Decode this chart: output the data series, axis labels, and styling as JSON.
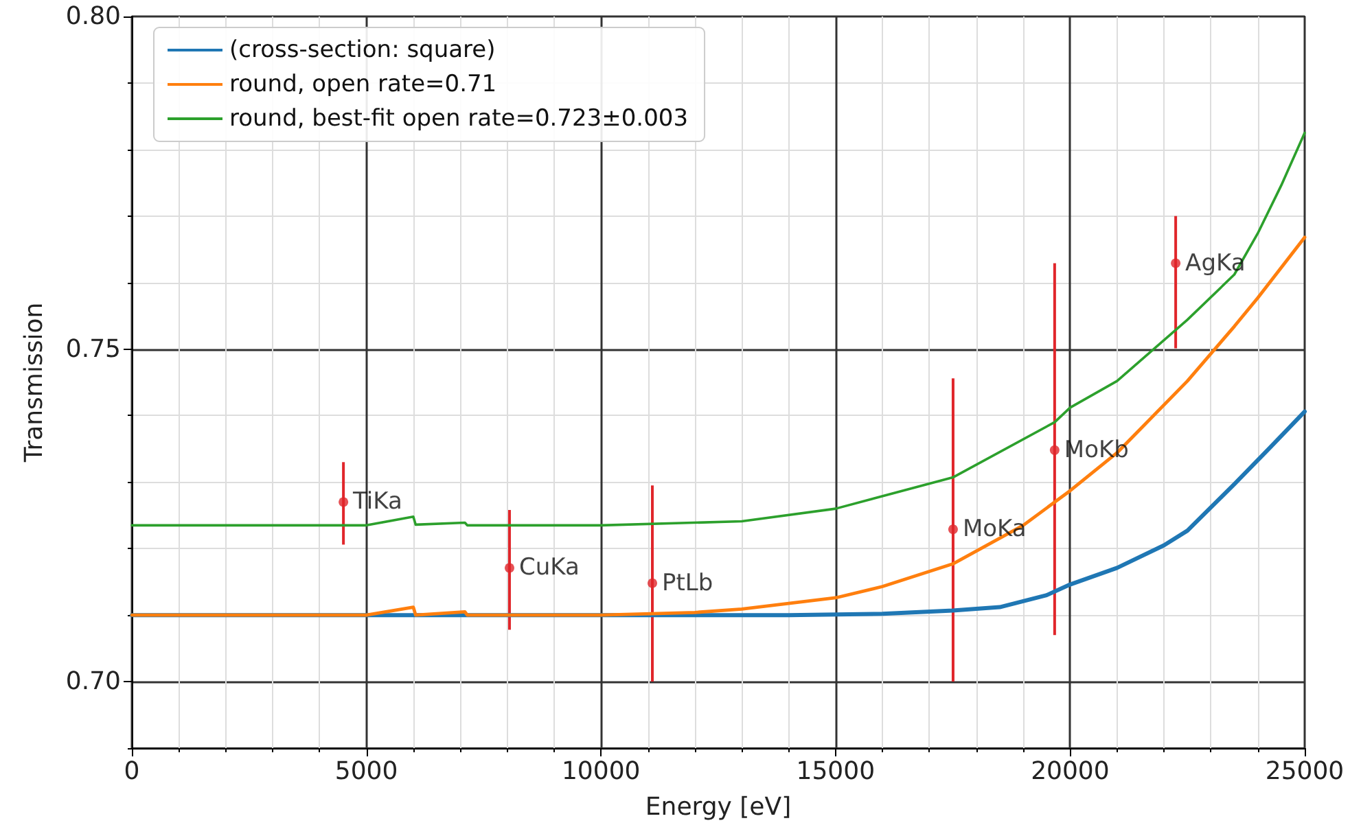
{
  "chart_data": {
    "type": "line",
    "xlabel": "Energy [eV]",
    "ylabel": "Transmission",
    "xlim": [
      0,
      25000
    ],
    "ylim": [
      0.69,
      0.8
    ],
    "xticks": [
      0,
      {
        "value": 1000,
        "label": null
      },
      {
        "value": 2000,
        "label": null
      },
      {
        "value": 3000,
        "label": null
      },
      {
        "value": 4000,
        "label": null
      },
      5000,
      {
        "value": 6000,
        "label": null
      },
      {
        "value": 7000,
        "label": null
      },
      {
        "value": 8000,
        "label": null
      },
      {
        "value": 9000,
        "label": null
      },
      10000,
      {
        "value": 11000,
        "label": null
      },
      {
        "value": 12000,
        "label": null
      },
      {
        "value": 13000,
        "label": null
      },
      {
        "value": 14000,
        "label": null
      },
      15000,
      {
        "value": 16000,
        "label": null
      },
      {
        "value": 17000,
        "label": null
      },
      {
        "value": 18000,
        "label": null
      },
      {
        "value": 19000,
        "label": null
      },
      20000,
      {
        "value": 21000,
        "label": null
      },
      {
        "value": 22000,
        "label": null
      },
      {
        "value": 23000,
        "label": null
      },
      {
        "value": 24000,
        "label": null
      },
      25000
    ],
    "yticks": [
      {
        "value": 0.69,
        "label": null
      },
      {
        "value": 0.7,
        "label": "0.70"
      },
      {
        "value": 0.71,
        "label": null
      },
      {
        "value": 0.72,
        "label": null
      },
      {
        "value": 0.73,
        "label": null
      },
      {
        "value": 0.74,
        "label": null
      },
      {
        "value": 0.75,
        "label": "0.75"
      },
      {
        "value": 0.76,
        "label": null
      },
      {
        "value": 0.77,
        "label": null
      },
      {
        "value": 0.78,
        "label": null
      },
      {
        "value": 0.79,
        "label": null
      },
      {
        "value": 0.8,
        "label": "0.80"
      }
    ],
    "grid": true,
    "legend": "top left",
    "marker": "none",
    "line_style": "solid",
    "series": [
      {
        "name": "(cross-section: square)",
        "color": "#1f77b4",
        "x": [
          0,
          14000,
          16000,
          17500,
          18500,
          19500,
          20000,
          21000,
          22000,
          22500,
          23500,
          24250,
          25000
        ],
        "values": [
          0.71,
          0.71,
          0.7102,
          0.7107,
          0.7112,
          0.713,
          0.7146,
          0.7171,
          0.7205,
          0.7227,
          0.7297,
          0.7351,
          0.7406
        ]
      },
      {
        "name": "round, open rate=0.71",
        "color": "#ff7f0e",
        "x": [
          0,
          5000,
          6000,
          6050,
          7100,
          7150,
          10000,
          12000,
          13000,
          15000,
          16000,
          17500,
          19000,
          20000,
          21000,
          22500,
          23500,
          24000,
          25000
        ],
        "values": [
          0.71,
          0.71,
          0.7112,
          0.71,
          0.7105,
          0.71,
          0.71,
          0.7104,
          0.7109,
          0.7126,
          0.7143,
          0.7177,
          0.7235,
          0.7287,
          0.7344,
          0.7452,
          0.7534,
          0.7577,
          0.7668
        ]
      },
      {
        "name": "round, best-fit open rate=0.723±0.003",
        "color": "#2ca02c",
        "x": [
          0,
          5000,
          6000,
          6050,
          7100,
          7150,
          10000,
          13000,
          15000,
          17500,
          19670,
          20000,
          21000,
          22500,
          23500,
          24000,
          24500,
          25000
        ],
        "values": [
          0.7235,
          0.7235,
          0.7248,
          0.7236,
          0.7239,
          0.7235,
          0.7235,
          0.7241,
          0.726,
          0.7307,
          0.739,
          0.7412,
          0.7452,
          0.7544,
          0.7612,
          0.7674,
          0.7746,
          0.7825
        ]
      },
      {
        "type": "scatter",
        "color": "#e0262b",
        "marker": "circle",
        "x": [
          4510,
          8050,
          11095,
          17505,
          19670,
          22250
        ],
        "values": [
          0.727,
          0.7171,
          0.7148,
          0.7229,
          0.7348,
          0.7629
        ],
        "errors": [
          [
            0.7206,
            0.733
          ],
          [
            0.7078,
            0.7258
          ],
          [
            0.7,
            0.7295
          ],
          [
            0.7,
            0.7456
          ],
          [
            0.707,
            0.7629
          ],
          [
            0.7501,
            0.77
          ]
        ]
      }
    ],
    "annotations": [
      {
        "text": "TiKa",
        "x": 4510,
        "y": 0.727
      },
      {
        "text": "CuKa",
        "x": 8050,
        "y": 0.7171
      },
      {
        "text": "PtLb",
        "x": 11095,
        "y": 0.7148
      },
      {
        "text": "MoKa",
        "x": 17505,
        "y": 0.7229
      },
      {
        "text": "MoKb",
        "x": 19670,
        "y": 0.7348
      },
      {
        "text": "AgKa",
        "x": 22250,
        "y": 0.7629
      }
    ]
  }
}
